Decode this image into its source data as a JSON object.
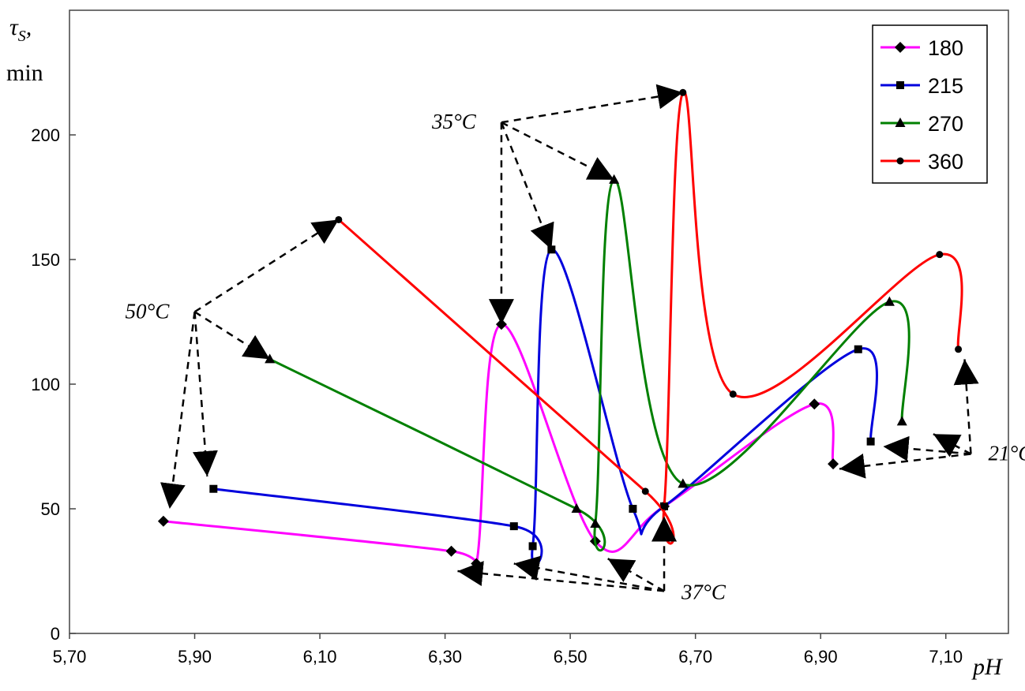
{
  "chart_data": {
    "type": "line",
    "xlabel": "pH",
    "ylabel": "τs, min",
    "ylabel_parts": {
      "symbol": "τ",
      "subscript": "S",
      "comma": ",",
      "unit": "min"
    },
    "xlim": [
      5.7,
      7.2
    ],
    "ylim": [
      0,
      250
    ],
    "x_ticks": [
      5.7,
      5.9,
      6.1,
      6.3,
      6.5,
      6.7,
      6.9,
      7.1
    ],
    "x_tick_labels": [
      "5,70",
      "5,90",
      "6,10",
      "6,30",
      "6,50",
      "6,70",
      "6,90",
      "7,10"
    ],
    "y_ticks": [
      0,
      50,
      100,
      150,
      200
    ],
    "y_tick_labels": [
      "0",
      "50",
      "100",
      "150",
      "200"
    ],
    "grid": false,
    "legend_position": "top-right",
    "series": [
      {
        "name": "180",
        "color": "#ff00ff",
        "marker": "diamond",
        "x": [
          5.85,
          6.31,
          6.35,
          6.39,
          6.54,
          6.65,
          6.89,
          6.92
        ],
        "y": [
          45,
          33,
          28,
          124,
          37,
          51,
          92,
          68
        ]
      },
      {
        "name": "215",
        "color": "#0000dd",
        "marker": "square",
        "x": [
          5.93,
          6.41,
          6.44,
          6.47,
          6.6,
          6.65,
          6.96,
          6.98
        ],
        "y": [
          58,
          43,
          35,
          154,
          50,
          51,
          114,
          77
        ]
      },
      {
        "name": "270",
        "color": "#008000",
        "marker": "triangle",
        "x": [
          6.02,
          6.51,
          6.54,
          6.57,
          6.68,
          7.01,
          7.03
        ],
        "y": [
          110,
          50,
          44,
          182,
          60,
          133,
          85
        ]
      },
      {
        "name": "360",
        "color": "#ff0000",
        "marker": "circle",
        "x": [
          6.13,
          6.62,
          6.65,
          6.68,
          6.76,
          7.09,
          7.12
        ],
        "y": [
          166,
          57,
          51,
          217,
          96,
          152,
          114
        ]
      }
    ],
    "annotations": [
      {
        "label": "35°C",
        "temp": "35",
        "unit": "°C",
        "x": 6.39,
        "y": 205,
        "targets": [
          [
            6.68,
            217
          ],
          [
            6.57,
            182
          ],
          [
            6.47,
            154
          ],
          [
            6.39,
            124
          ]
        ]
      },
      {
        "label": "50°C",
        "temp": "50",
        "unit": "°C",
        "x": 5.9,
        "y": 129,
        "targets": [
          [
            6.13,
            166
          ],
          [
            6.02,
            110
          ],
          [
            5.92,
            63
          ],
          [
            5.86,
            50
          ]
        ]
      },
      {
        "label": "37°C",
        "temp": "37",
        "unit": "°C",
        "x": 6.65,
        "y": 17,
        "targets": [
          [
            6.32,
            25
          ],
          [
            6.41,
            28
          ],
          [
            6.56,
            30
          ],
          [
            6.65,
            47
          ]
        ]
      },
      {
        "label": "21°C",
        "temp": "21",
        "unit": "°C",
        "x": 7.14,
        "y": 72,
        "targets": [
          [
            7.13,
            110
          ],
          [
            7.08,
            80
          ],
          [
            7.0,
            75
          ],
          [
            6.93,
            66
          ]
        ]
      }
    ]
  }
}
